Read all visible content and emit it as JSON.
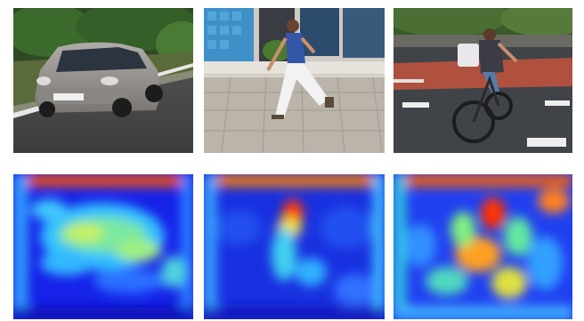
{
  "photos": [
    {
      "subject": "car"
    },
    {
      "subject": "pedestrian"
    },
    {
      "subject": "cyclist"
    }
  ],
  "heatmaps": [
    {
      "subject": "car",
      "colormap": "jet"
    },
    {
      "subject": "pedestrian",
      "colormap": "jet"
    },
    {
      "subject": "cyclist",
      "colormap": "jet"
    }
  ],
  "colors": {
    "background": "#ffffff",
    "jet_blue": "#1a1aff",
    "jet_cyan": "#2fc8ff",
    "jet_yellow": "#f0f020",
    "jet_red": "#ff2000"
  }
}
